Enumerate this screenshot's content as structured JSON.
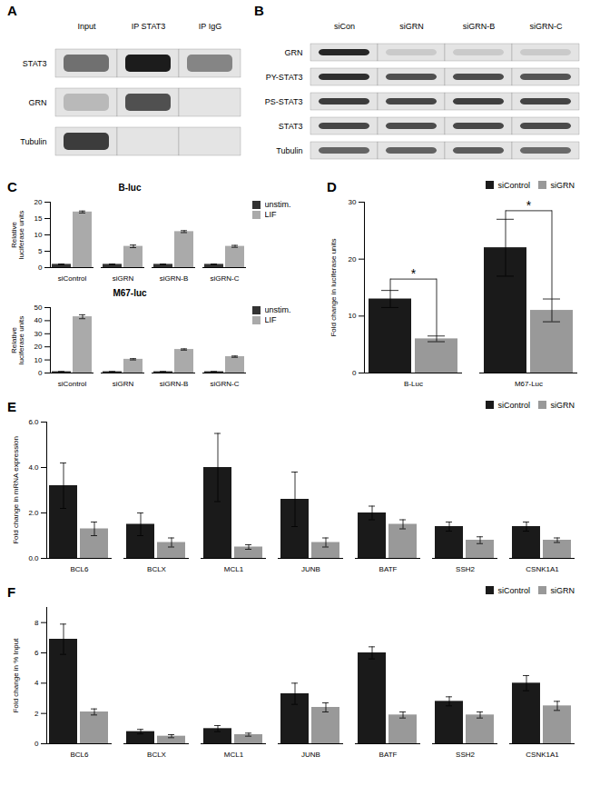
{
  "chart_data": [
    {
      "type": "western_blot",
      "panel_label": "A",
      "columns": [
        "Input",
        "IP STAT3",
        "IP IgG"
      ],
      "rows": [
        "STAT3",
        "GRN",
        "Tubulin"
      ],
      "intensity": [
        [
          0.55,
          0.95,
          0.45
        ],
        [
          0.2,
          0.7,
          null
        ],
        [
          0.8,
          null,
          null
        ]
      ]
    },
    {
      "type": "western_blot",
      "panel_label": "B",
      "columns": [
        "siCon",
        "siGRN",
        "siGRN-B",
        "siGRN-C"
      ],
      "rows": [
        "GRN",
        "PY-STAT3",
        "PS-STAT3",
        "STAT3",
        "Tubulin"
      ],
      "intensity": [
        [
          0.9,
          0.12,
          0.12,
          0.12
        ],
        [
          0.85,
          0.7,
          0.72,
          0.68
        ],
        [
          0.8,
          0.75,
          0.78,
          0.76
        ],
        [
          0.75,
          0.72,
          0.74,
          0.73
        ],
        [
          0.6,
          0.62,
          0.65,
          0.58
        ]
      ]
    },
    {
      "type": "bar",
      "panel_label": "C",
      "title": "B-luc",
      "categories": [
        "siControl",
        "siGRN",
        "siGRN-B",
        "siGRN-C"
      ],
      "series": [
        {
          "name": "unstim.",
          "color": "#333333",
          "values": [
            1.0,
            1.0,
            1.0,
            1.0
          ],
          "errors": [
            0.1,
            0.1,
            0.1,
            0.1
          ]
        },
        {
          "name": "LIF",
          "color": "#aaaaaa",
          "values": [
            17.0,
            6.5,
            11.0,
            6.5
          ],
          "errors": [
            0.3,
            0.4,
            0.3,
            0.3
          ]
        }
      ],
      "ylabel": "Relative\nluciferase units",
      "ylim": [
        0,
        20
      ],
      "yticks": [
        0,
        5,
        10,
        15,
        20
      ],
      "legend": "right"
    },
    {
      "type": "bar",
      "title": "M67-luc",
      "categories": [
        "siControl",
        "siGRN",
        "siGRN-B",
        "siGRN-C"
      ],
      "series": [
        {
          "name": "unstim.",
          "color": "#333333",
          "values": [
            1.0,
            1.0,
            1.0,
            1.0
          ],
          "errors": [
            0.1,
            0.1,
            0.1,
            0.1
          ]
        },
        {
          "name": "LIF",
          "color": "#aaaaaa",
          "values": [
            43.0,
            10.5,
            18.0,
            12.5
          ],
          "errors": [
            1.5,
            0.5,
            0.5,
            0.5
          ]
        }
      ],
      "ylabel": "Relative\nluciferase units",
      "ylim": [
        0,
        50
      ],
      "yticks": [
        0,
        10,
        20,
        30,
        40,
        50
      ],
      "legend": "right"
    },
    {
      "type": "bar",
      "panel_label": "D",
      "categories": [
        "B-Luc",
        "M67-Luc"
      ],
      "series": [
        {
          "name": "siControl",
          "color": "#1a1a1a",
          "values": [
            13.0,
            22.0
          ],
          "errors": [
            1.5,
            5.0
          ]
        },
        {
          "name": "siGRN",
          "color": "#999999",
          "values": [
            6.0,
            11.0
          ],
          "errors": [
            0.5,
            2.0
          ]
        }
      ],
      "ylabel": "Fold change in luciferase units",
      "ylim": [
        0,
        30
      ],
      "yticks": [
        0,
        10,
        20,
        30
      ],
      "legend": "upper right",
      "brackets": [
        {
          "category": "B-Luc",
          "bottoms": [
            14.5,
            6.5
          ],
          "top": 16.5,
          "text": "*"
        },
        {
          "category": "M67-Luc",
          "bottoms": [
            27.0,
            13.0
          ],
          "top": 28.5,
          "text": "*"
        }
      ]
    },
    {
      "type": "bar",
      "panel_label": "E",
      "categories": [
        "BCL6",
        "BCLX",
        "MCL1",
        "JUNB",
        "BATF",
        "SSH2",
        "CSNK1A1"
      ],
      "series": [
        {
          "name": "siControl",
          "color": "#1a1a1a",
          "values": [
            3.2,
            1.5,
            4.0,
            2.6,
            2.0,
            1.4,
            1.4
          ],
          "errors": [
            1.0,
            0.5,
            1.5,
            1.2,
            0.3,
            0.2,
            0.2
          ]
        },
        {
          "name": "siGRN",
          "color": "#999999",
          "values": [
            1.3,
            0.7,
            0.5,
            0.7,
            1.5,
            0.8,
            0.8
          ],
          "errors": [
            0.3,
            0.2,
            0.1,
            0.2,
            0.2,
            0.15,
            0.1
          ]
        }
      ],
      "ylabel": "Fold change in mRNA expression",
      "ylim": [
        0,
        6
      ],
      "yticks": [
        0,
        2,
        4,
        6
      ],
      "legend": "upper right"
    },
    {
      "type": "bar",
      "panel_label": "F",
      "categories": [
        "BCL6",
        "BCLX",
        "MCL1",
        "JUNB",
        "BATF",
        "SSH2",
        "CSNK1A1"
      ],
      "series": [
        {
          "name": "siControl",
          "color": "#1a1a1a",
          "values": [
            6.9,
            0.8,
            1.0,
            3.3,
            6.0,
            2.8,
            4.0
          ],
          "errors": [
            1.0,
            0.15,
            0.2,
            0.7,
            0.4,
            0.3,
            0.5
          ]
        },
        {
          "name": "siGRN",
          "color": "#999999",
          "values": [
            2.1,
            0.5,
            0.6,
            2.4,
            1.9,
            1.9,
            2.5
          ],
          "errors": [
            0.2,
            0.1,
            0.1,
            0.3,
            0.2,
            0.2,
            0.3
          ]
        }
      ],
      "ylabel": "Fold change in % Input",
      "ylim": [
        0,
        9
      ],
      "yticks": [
        0,
        2,
        4,
        6,
        8
      ],
      "legend": "upper right"
    }
  ]
}
